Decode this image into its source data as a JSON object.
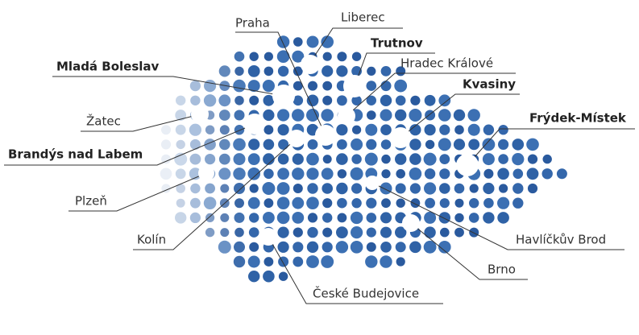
{
  "cities": [
    {
      "name": "Liberec"
    },
    {
      "name": "Praha"
    },
    {
      "name": "Trutnov"
    },
    {
      "name": "Hradec Králové"
    },
    {
      "name": "Mladá Boleslav"
    },
    {
      "name": "Kvasiny"
    },
    {
      "name": "Žatec"
    },
    {
      "name": "Frýdek-Místek"
    },
    {
      "name": "Brandýs nad Labem"
    },
    {
      "name": "Plzeň"
    },
    {
      "name": "Kolín"
    },
    {
      "name": "Havlíčkův Brod"
    },
    {
      "name": "Brno"
    },
    {
      "name": "České Budejovice"
    }
  ]
}
